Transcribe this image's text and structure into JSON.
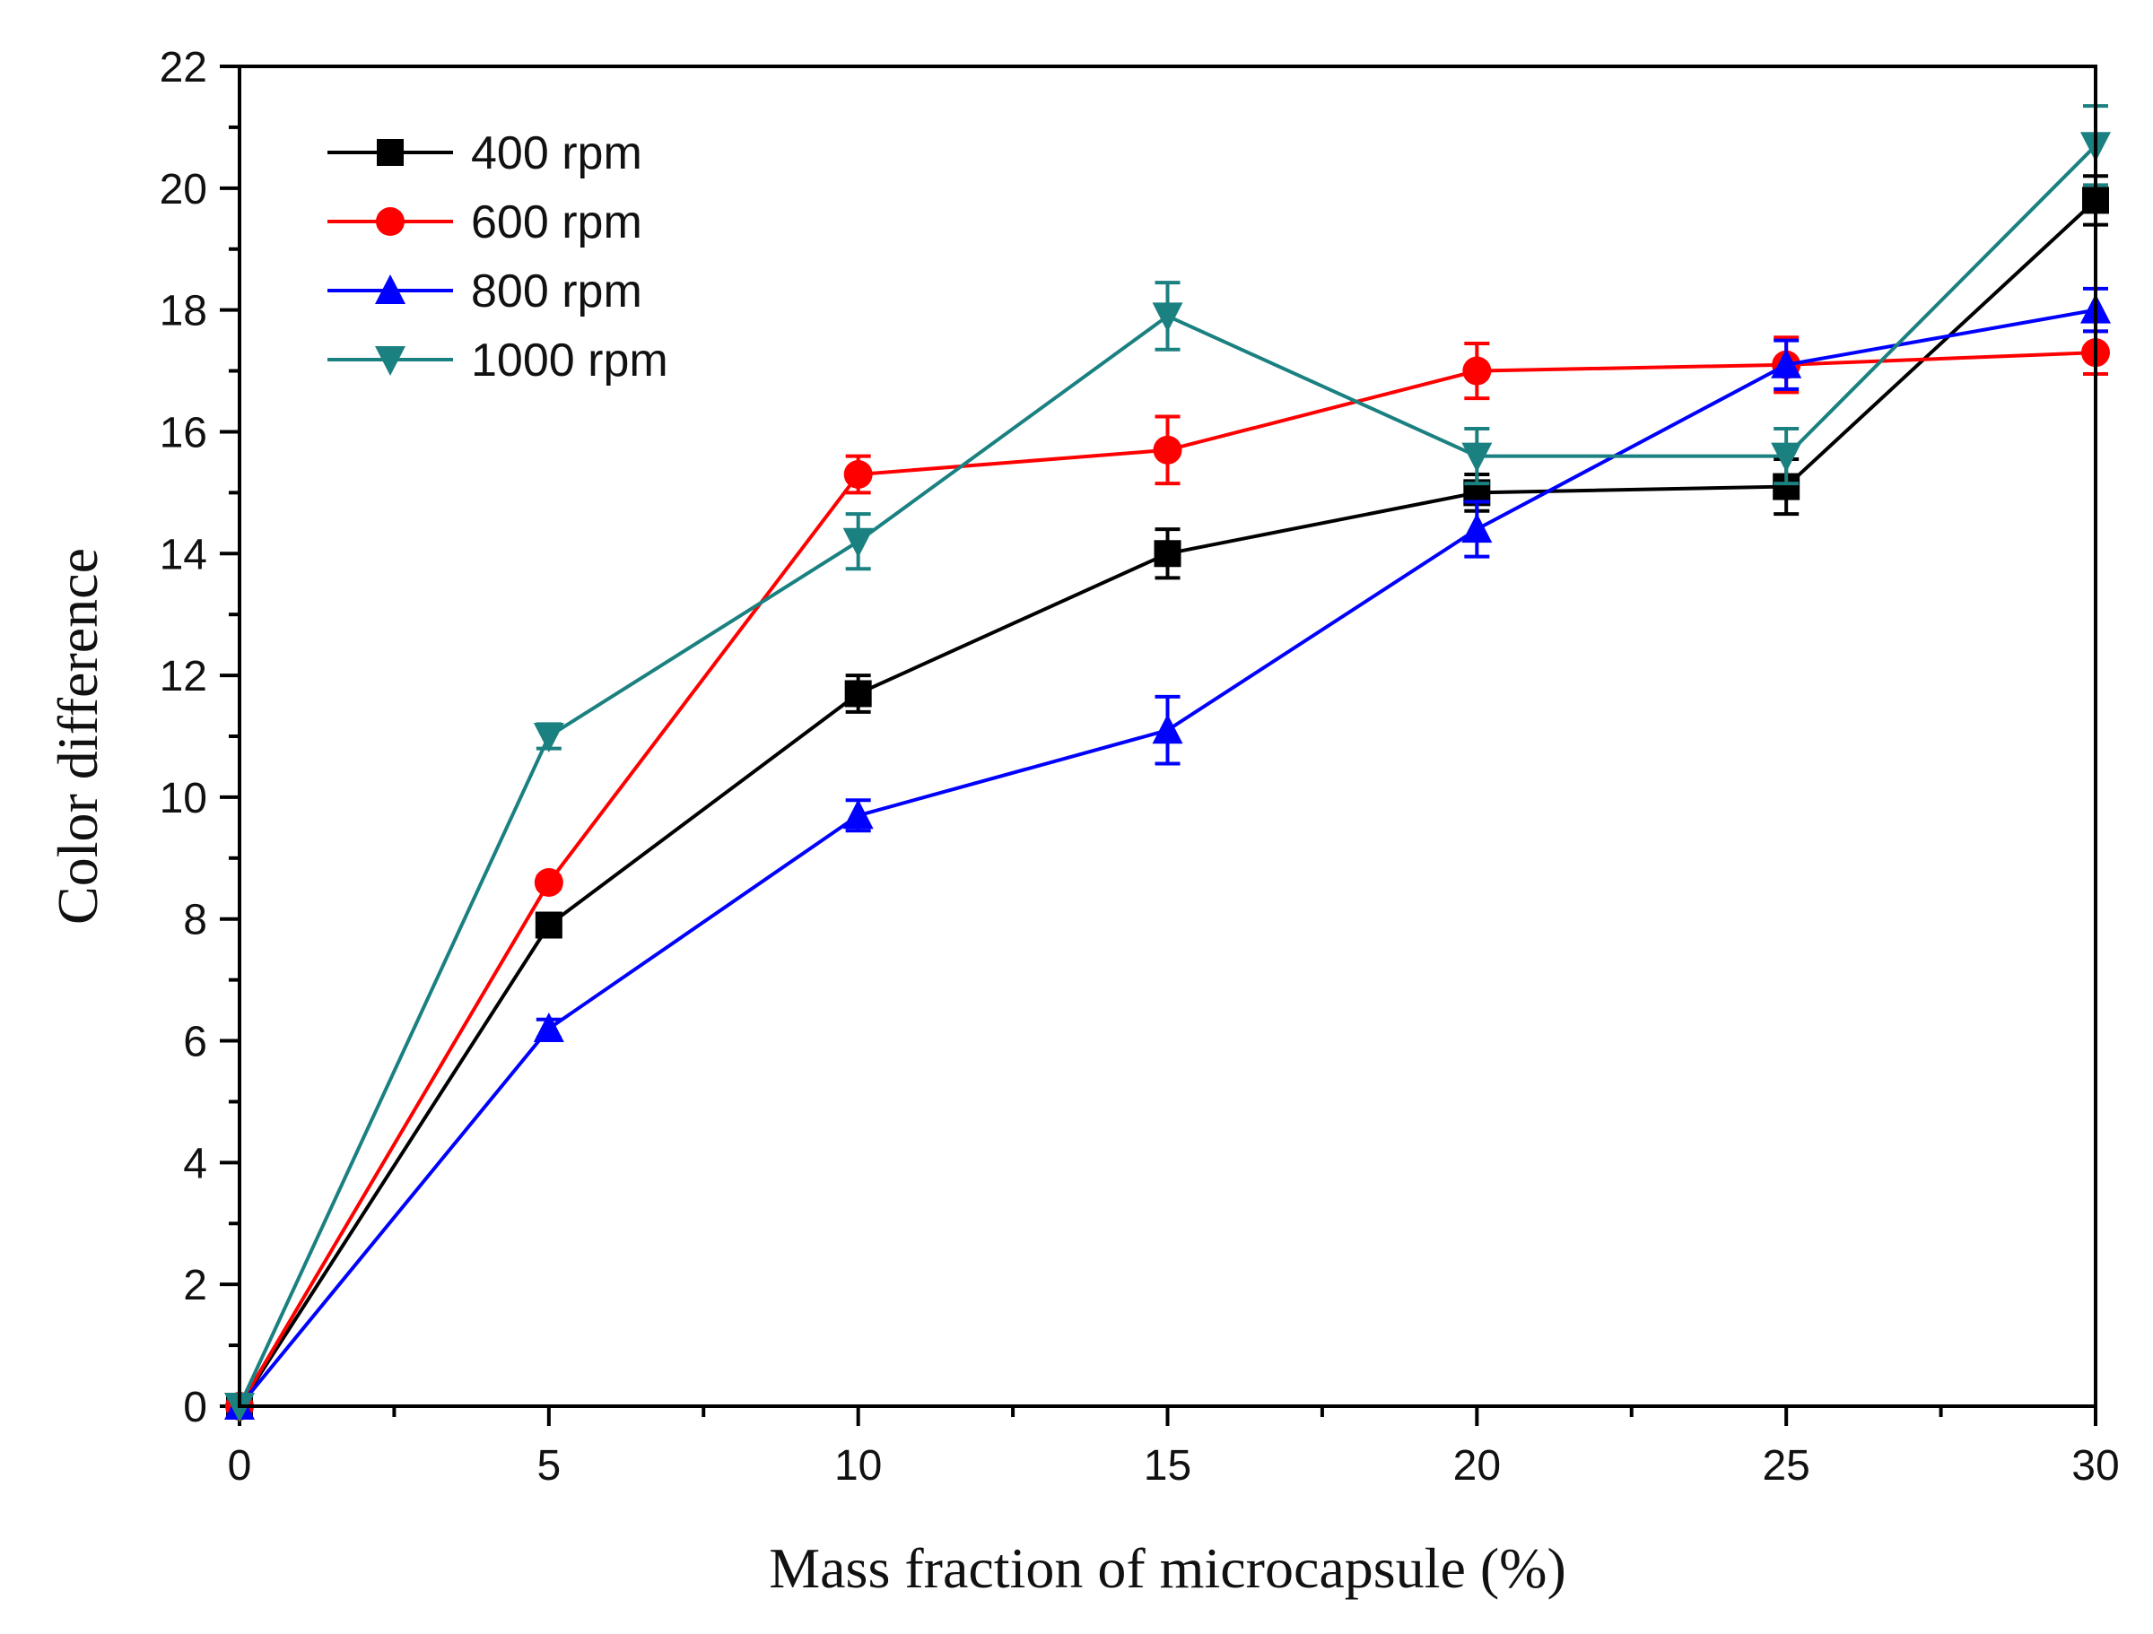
{
  "chart_data": {
    "type": "line",
    "title": "",
    "xlabel": "Mass fraction of microcapsule  (%)",
    "ylabel": "Color difference",
    "xlim": [
      0,
      30
    ],
    "ylim": [
      0,
      22
    ],
    "x_ticks": [
      0,
      5,
      10,
      15,
      20,
      25,
      30
    ],
    "y_ticks": [
      0,
      2,
      4,
      6,
      8,
      10,
      12,
      14,
      16,
      18,
      20,
      22
    ],
    "x": [
      0,
      5,
      10,
      15,
      20,
      25,
      30
    ],
    "legend_position": "top-left",
    "series": [
      {
        "name": "400 rpm",
        "color": "#000000",
        "marker": "square",
        "values": [
          0,
          7.9,
          11.7,
          14.0,
          15.0,
          15.1,
          19.8
        ],
        "errors": [
          0,
          0.15,
          0.3,
          0.4,
          0.3,
          0.45,
          0.4
        ]
      },
      {
        "name": "600 rpm",
        "color": "#ff0000",
        "marker": "circle",
        "values": [
          0,
          8.6,
          15.3,
          15.7,
          17.0,
          17.1,
          17.3
        ],
        "errors": [
          0,
          0.1,
          0.3,
          0.55,
          0.45,
          0.45,
          0.35
        ]
      },
      {
        "name": "800 rpm",
        "color": "#0000ff",
        "marker": "triangle-up",
        "values": [
          0,
          6.2,
          9.7,
          11.1,
          14.4,
          17.1,
          18.0
        ],
        "errors": [
          0,
          0.15,
          0.25,
          0.55,
          0.45,
          0.4,
          0.35
        ]
      },
      {
        "name": "1000 rpm",
        "color": "#1a8080",
        "marker": "triangle-down",
        "values": [
          0,
          11.0,
          14.2,
          17.9,
          15.6,
          15.6,
          20.7
        ],
        "errors": [
          0,
          0.2,
          0.45,
          0.55,
          0.45,
          0.45,
          0.65
        ]
      }
    ]
  }
}
